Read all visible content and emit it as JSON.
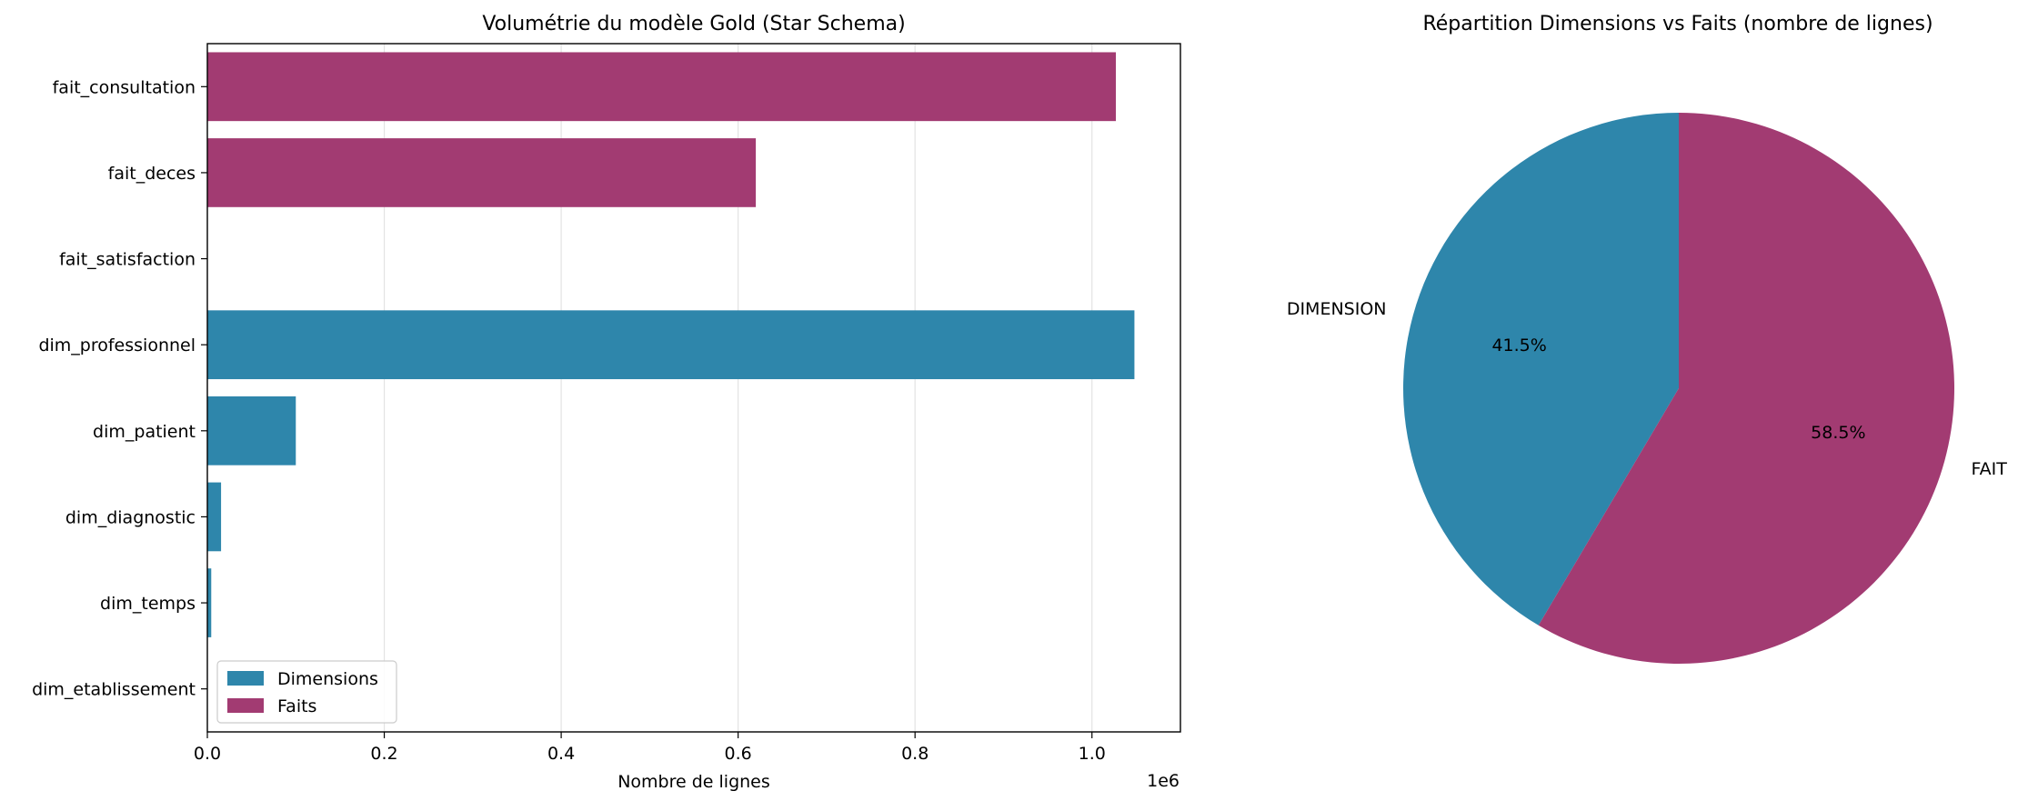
{
  "chart_data": [
    {
      "type": "bar",
      "orientation": "horizontal",
      "title": "Volumétrie du modèle Gold (Star Schema)",
      "xlabel": "Nombre de lignes",
      "ylabel": "",
      "x_offset_label": "1e6",
      "xlim": [
        0,
        1100000
      ],
      "xticks": [
        0,
        200000,
        400000,
        600000,
        800000,
        1000000
      ],
      "xtick_labels": [
        "0.0",
        "0.2",
        "0.4",
        "0.6",
        "0.8",
        "1.0"
      ],
      "grid": "x",
      "legend_position": "lower-left",
      "categories": [
        "fait_consultation",
        "fait_deces",
        "fait_satisfaction",
        "dim_professionnel",
        "dim_patient",
        "dim_diagnostic",
        "dim_temps",
        "dim_etablissement"
      ],
      "series": [
        {
          "name": "Dimensions",
          "color": "#2e86ab",
          "values": [
            null,
            null,
            null,
            1048000,
            100000,
            15500,
            4400,
            500
          ]
        },
        {
          "name": "Faits",
          "color": "#a23b72",
          "values": [
            1027000,
            620000,
            0,
            null,
            null,
            null,
            null,
            null
          ]
        }
      ]
    },
    {
      "type": "pie",
      "title": "Répartition Dimensions vs Faits (nombre de lignes)",
      "start_angle": 90,
      "direction": "counterclockwise",
      "slices": [
        {
          "label": "DIMENSION",
          "value": 41.5,
          "pct_label": "41.5%",
          "color": "#2e86ab"
        },
        {
          "label": "FAIT",
          "value": 58.5,
          "pct_label": "58.5%",
          "color": "#a23b72"
        }
      ]
    }
  ]
}
